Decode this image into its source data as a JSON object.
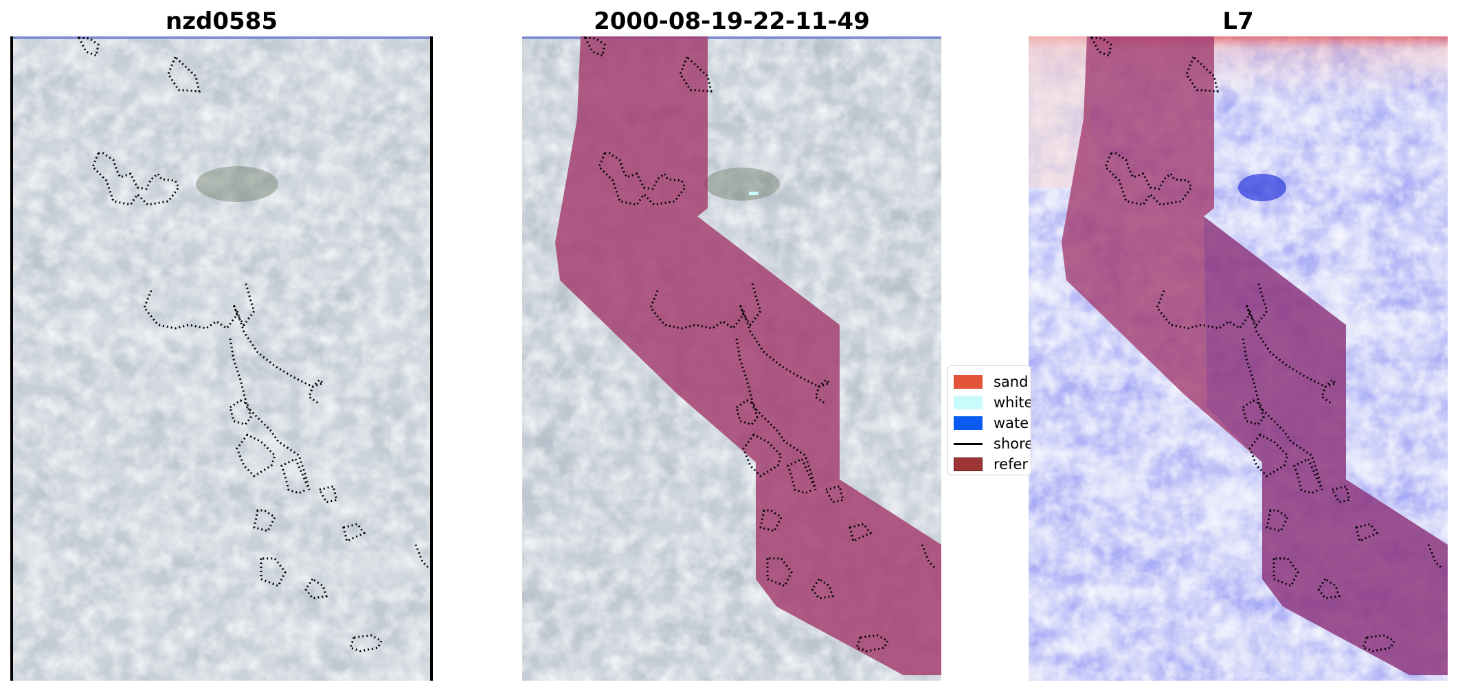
{
  "panels": [
    {
      "title": "nzd0585"
    },
    {
      "title": "2000-08-19-22-11-49"
    },
    {
      "title": "L7"
    }
  ],
  "legend": {
    "items": [
      {
        "label": "sand",
        "color": "#e2533a"
      },
      {
        "label": "white",
        "color": "#c8fbfb"
      },
      {
        "label": "wate",
        "color": "#0a5cf0"
      },
      {
        "label": "shore",
        "color": "#000000"
      },
      {
        "label": "refer",
        "color": "#9e3535"
      }
    ]
  },
  "colors": {
    "overlay": "#a23a6d",
    "ice": "#b9c3cc",
    "shoreline": "#000000"
  }
}
